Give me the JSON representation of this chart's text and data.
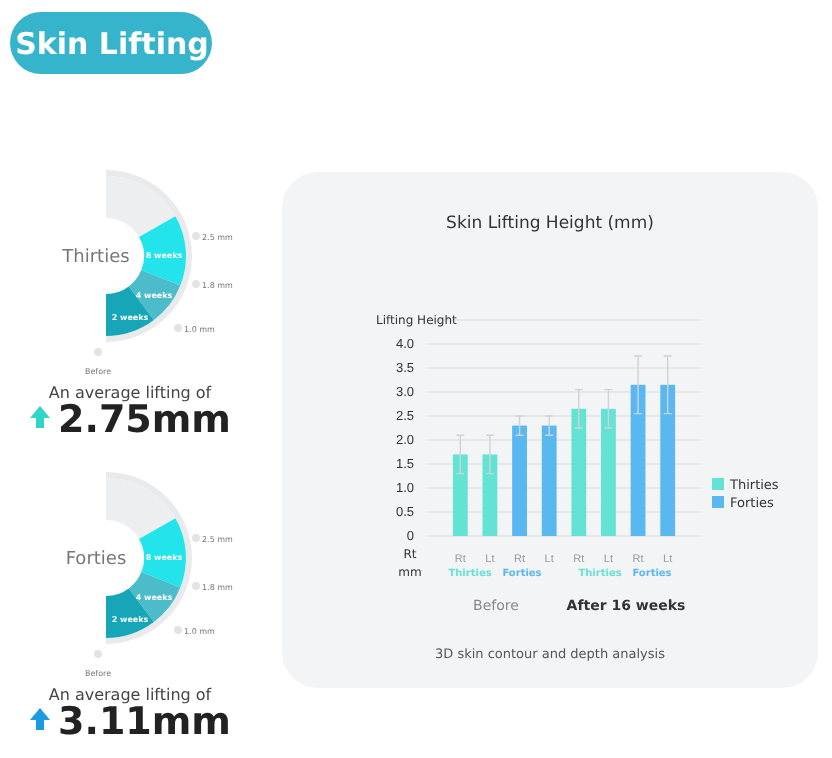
{
  "chart_data": {
    "type": "bar",
    "title": "Skin Lifting Height (mm)",
    "ylabel": "Lifting Height",
    "categories": [
      "Rt",
      "Lt",
      "Rt",
      "Lt",
      "Rt",
      "Lt",
      "Rt",
      "Lt"
    ],
    "series": [
      {
        "name": "Thirties",
        "color": "#63e3d3",
        "values": [
          1.7,
          1.7,
          null,
          null,
          2.65,
          2.65,
          null,
          null
        ],
        "errors": [
          0.4,
          0.4,
          null,
          null,
          0.4,
          0.4,
          null,
          null
        ]
      },
      {
        "name": "Forties",
        "color": "#5ab8f0",
        "values": [
          null,
          null,
          2.3,
          2.3,
          null,
          null,
          3.15,
          3.15
        ],
        "errors": [
          null,
          null,
          0.2,
          0.2,
          null,
          null,
          0.6,
          0.6
        ]
      }
    ],
    "ylim": [
      0,
      4.5
    ],
    "yticks": [
      0,
      0.5,
      {
        "value": 1,
        "label": "1.0"
      },
      1.5,
      {
        "value": 2,
        "label": "2.0"
      },
      2.5,
      {
        "value": 3,
        "label": "3.0"
      },
      3.5,
      {
        "value": 4,
        "label": "4.0"
      },
      {
        "value": 4.5,
        "label": null
      }
    ],
    "grid": "y",
    "legend": "right",
    "annotations": [
      "Skin Lifting",
      "Thirties",
      "8 weeks",
      "4 weeks",
      "2 weeks",
      "2.5 mm",
      "1.8 mm",
      "1.0 mm",
      "Before",
      "An average lifting of",
      "2.75mm",
      "Forties",
      "8 weeks",
      "4 weeks",
      "2 weeks",
      "2.5 mm",
      "1.8 mm",
      "1.0 mm",
      "Before",
      "An average lifting of",
      "3.11mm",
      "Rt",
      "mm",
      "Thirties",
      "Forties",
      "Thirties",
      "Forties",
      "Before",
      "After 16 weeks",
      "3D skin contour and depth analysis"
    ]
  }
}
